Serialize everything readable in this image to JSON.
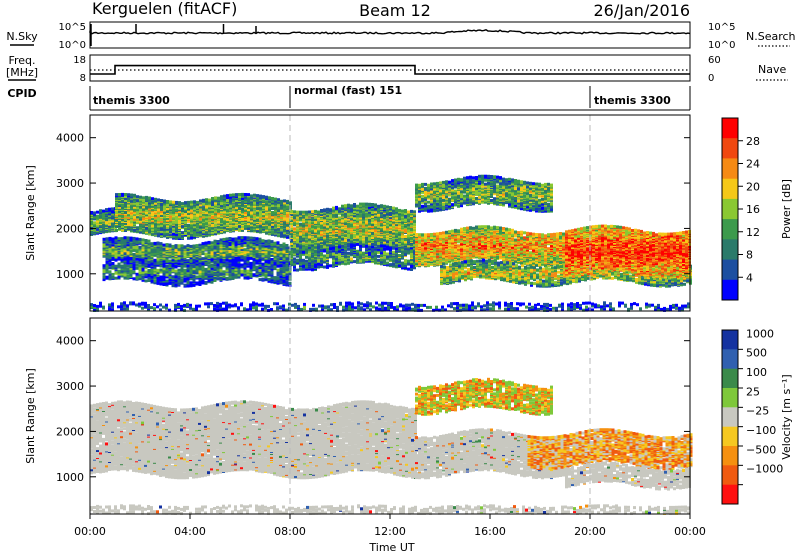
{
  "header": {
    "station": "Kerguelen (fitACF)",
    "beam": "Beam 12",
    "date": "26/Jan/2016"
  },
  "x_axis": {
    "ticks": [
      "00:00",
      "04:00",
      "08:00",
      "12:00",
      "16:00",
      "20:00",
      "00:00"
    ],
    "label": "Time UT"
  },
  "nsky_panel": {
    "left_label": "N.Sky",
    "right_label": "N.Search",
    "left_ticks": [
      "10^5",
      "10^0"
    ],
    "right_ticks": [
      "10^5",
      "10^0"
    ]
  },
  "freq_panel": {
    "left_label_1": "Freq.",
    "left_label_2": "[MHz]",
    "left_ticks": [
      "18",
      "8"
    ],
    "right_label": "Nave",
    "right_ticks": [
      "60",
      "0"
    ]
  },
  "cpid_panel": {
    "label": "CPID",
    "segments": [
      {
        "label": "themis 3300",
        "start": 0,
        "end": 8
      },
      {
        "label": "normal (fast) 151",
        "start": 8,
        "end": 20
      },
      {
        "label": "themis 3300",
        "start": 20,
        "end": 24
      }
    ]
  },
  "power_panel": {
    "ylabel": "Slant Range [km]",
    "yticks": [
      "1000",
      "2000",
      "3000",
      "4000"
    ],
    "colorbar_label": "Power [dB]",
    "colorbar_ticks": [
      "4",
      "8",
      "12",
      "16",
      "20",
      "24",
      "28"
    ]
  },
  "velocity_panel": {
    "ylabel": "Slant Range [km]",
    "yticks": [
      "1000",
      "2000",
      "3000",
      "4000"
    ],
    "colorbar_label": "Velocity [m s⁻¹]",
    "colorbar_ticks": [
      "1000",
      "500",
      "100",
      "25",
      "−25",
      "−100",
      "−500",
      "−1000"
    ]
  },
  "colors": {
    "power_scale": [
      "#0000ff",
      "#1c4fa0",
      "#2a7a6a",
      "#3c9a4c",
      "#8ac832",
      "#f5c818",
      "#f58a14",
      "#f04810",
      "#ff0000"
    ],
    "velocity_scale": [
      "#1432a0",
      "#3060b0",
      "#3a8a4a",
      "#7ec83a",
      "#c8c8c0",
      "#f5c820",
      "#f59010",
      "#f05a10",
      "#ff1010"
    ],
    "ground_scatter": "#c8c8c0"
  },
  "chart_data": [
    {
      "type": "line",
      "name": "nsky-nsearch",
      "x_range": [
        0,
        24
      ],
      "y_scale": "log",
      "ylim": [
        1,
        100000
      ]
    },
    {
      "type": "line",
      "name": "frequency-nave",
      "x_range": [
        0,
        24
      ],
      "ylim_frequency": [
        8,
        18
      ],
      "ylim_nave": [
        0,
        60
      ],
      "frequency_steps": [
        {
          "start": 0.0,
          "end": 1.0,
          "value": 10.5
        },
        {
          "start": 1.0,
          "end": 13.0,
          "value": 14.0
        },
        {
          "start": 13.0,
          "end": 24.0,
          "value": 10.5
        }
      ]
    },
    {
      "type": "heatmap",
      "name": "power",
      "x_range": [
        0,
        24
      ],
      "ylim": [
        180,
        4500
      ],
      "zlim": [
        0,
        30
      ],
      "features": [
        {
          "t0": 0.0,
          "t1": 24.0,
          "r_lo": 200,
          "r_hi": 380,
          "level": 0.25,
          "density": 0.35
        },
        {
          "t0": 0.0,
          "t1": 1.0,
          "r_lo": 1900,
          "r_hi": 2400,
          "level": 0.45,
          "density": 0.9
        },
        {
          "t0": 1.0,
          "t1": 8.0,
          "r_lo": 1900,
          "r_hi": 2700,
          "level": 0.55,
          "density": 0.85
        },
        {
          "t0": 0.5,
          "t1": 8.0,
          "r_lo": 1300,
          "r_hi": 1750,
          "level": 0.45,
          "density": 0.8
        },
        {
          "t0": 0.5,
          "t1": 8.0,
          "r_lo": 850,
          "r_hi": 1300,
          "level": 0.35,
          "density": 0.55
        },
        {
          "t0": 8.0,
          "t1": 13.0,
          "r_lo": 1600,
          "r_hi": 2500,
          "level": 0.55,
          "density": 0.85
        },
        {
          "t0": 8.0,
          "t1": 13.0,
          "r_lo": 1200,
          "r_hi": 1600,
          "level": 0.4,
          "density": 0.6
        },
        {
          "t0": 13.0,
          "t1": 18.5,
          "r_lo": 2500,
          "r_hi": 3100,
          "level": 0.5,
          "density": 0.7
        },
        {
          "t0": 13.0,
          "t1": 21.0,
          "r_lo": 1300,
          "r_hi": 2000,
          "level": 0.75,
          "density": 0.85
        },
        {
          "t0": 14.0,
          "t1": 24.0,
          "r_lo": 850,
          "r_hi": 1250,
          "level": 0.6,
          "density": 0.7
        },
        {
          "t0": 19.0,
          "t1": 24.0,
          "r_lo": 1050,
          "r_hi": 2000,
          "level": 0.9,
          "density": 0.9
        }
      ]
    },
    {
      "type": "heatmap",
      "name": "velocity",
      "x_range": [
        0,
        24
      ],
      "ylim": [
        180,
        4500
      ],
      "zlim": [
        -1000,
        1000
      ],
      "features": [
        {
          "t0": 0.0,
          "t1": 24.0,
          "r_lo": 200,
          "r_hi": 380,
          "kind": "ground",
          "density": 0.35
        },
        {
          "t0": 0.0,
          "t1": 13.0,
          "r_lo": 1100,
          "r_hi": 2600,
          "kind": "ground",
          "density": 0.8
        },
        {
          "t0": 13.0,
          "t1": 19.0,
          "r_lo": 1100,
          "r_hi": 2000,
          "kind": "ground",
          "density": 0.75
        },
        {
          "t0": 13.0,
          "t1": 18.5,
          "r_lo": 2500,
          "r_hi": 3100,
          "kind": "mixed",
          "density": 0.6
        },
        {
          "t0": 17.5,
          "t1": 24.0,
          "r_lo": 1300,
          "r_hi": 2000,
          "kind": "negative",
          "density": 0.7
        },
        {
          "t0": 19.0,
          "t1": 24.0,
          "r_lo": 850,
          "r_hi": 1250,
          "kind": "ground",
          "density": 0.6
        }
      ]
    }
  ]
}
